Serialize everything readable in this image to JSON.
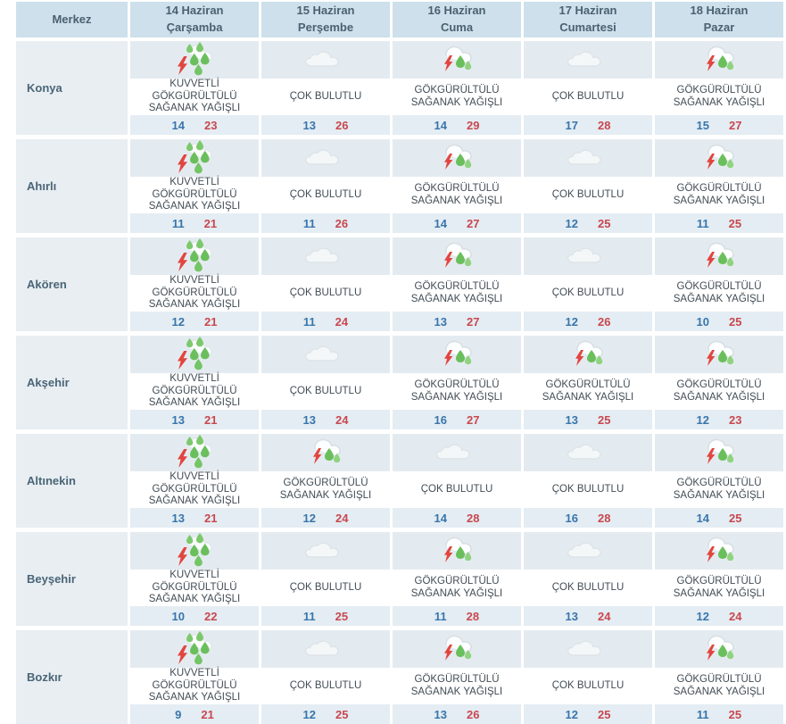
{
  "table": {
    "columns": [
      {
        "label": "Merkez"
      },
      {
        "date": "14 Haziran",
        "day": "Çarşamba"
      },
      {
        "date": "15 Haziran",
        "day": "Perşembe"
      },
      {
        "date": "16 Haziran",
        "day": "Cuma"
      },
      {
        "date": "17 Haziran",
        "day": "Cumartesi"
      },
      {
        "date": "18 Haziran",
        "day": "Pazar"
      }
    ],
    "rows": [
      {
        "city": "Konya",
        "days": [
          {
            "icon": "heavy-storm-rain-icon",
            "condition": "KUVVETLİ GÖKGÜRÜLTÜLÜ SAĞANAK YAĞIŞLI",
            "min": "14",
            "max": "23"
          },
          {
            "icon": "cloudy-icon",
            "condition": "ÇOK BULUTLU",
            "min": "13",
            "max": "26"
          },
          {
            "icon": "storm-rain-icon",
            "condition": "GÖKGÜRÜLTÜLÜ SAĞANAK YAĞIŞLI",
            "min": "14",
            "max": "29"
          },
          {
            "icon": "cloudy-icon",
            "condition": "ÇOK BULUTLU",
            "min": "17",
            "max": "28"
          },
          {
            "icon": "storm-rain-icon",
            "condition": "GÖKGÜRÜLTÜLÜ SAĞANAK YAĞIŞLI",
            "min": "15",
            "max": "27"
          }
        ]
      },
      {
        "city": "Ahırlı",
        "days": [
          {
            "icon": "heavy-storm-rain-icon",
            "condition": "KUVVETLİ GÖKGÜRÜLTÜLÜ SAĞANAK YAĞIŞLI",
            "min": "11",
            "max": "21"
          },
          {
            "icon": "cloudy-icon",
            "condition": "ÇOK BULUTLU",
            "min": "11",
            "max": "26"
          },
          {
            "icon": "storm-rain-icon",
            "condition": "GÖKGÜRÜLTÜLÜ SAĞANAK YAĞIŞLI",
            "min": "14",
            "max": "27"
          },
          {
            "icon": "cloudy-icon",
            "condition": "ÇOK BULUTLU",
            "min": "12",
            "max": "25"
          },
          {
            "icon": "storm-rain-icon",
            "condition": "GÖKGÜRÜLTÜLÜ SAĞANAK YAĞIŞLI",
            "min": "11",
            "max": "25"
          }
        ]
      },
      {
        "city": "Akören",
        "days": [
          {
            "icon": "heavy-storm-rain-icon",
            "condition": "KUVVETLİ GÖKGÜRÜLTÜLÜ SAĞANAK YAĞIŞLI",
            "min": "12",
            "max": "21"
          },
          {
            "icon": "cloudy-icon",
            "condition": "ÇOK BULUTLU",
            "min": "11",
            "max": "24"
          },
          {
            "icon": "storm-rain-icon",
            "condition": "GÖKGÜRÜLTÜLÜ SAĞANAK YAĞIŞLI",
            "min": "13",
            "max": "27"
          },
          {
            "icon": "cloudy-icon",
            "condition": "ÇOK BULUTLU",
            "min": "12",
            "max": "26"
          },
          {
            "icon": "storm-rain-icon",
            "condition": "GÖKGÜRÜLTÜLÜ SAĞANAK YAĞIŞLI",
            "min": "10",
            "max": "25"
          }
        ]
      },
      {
        "city": "Akşehir",
        "days": [
          {
            "icon": "heavy-storm-rain-icon",
            "condition": "KUVVETLİ GÖKGÜRÜLTÜLÜ SAĞANAK YAĞIŞLI",
            "min": "13",
            "max": "21"
          },
          {
            "icon": "cloudy-icon",
            "condition": "ÇOK BULUTLU",
            "min": "13",
            "max": "24"
          },
          {
            "icon": "storm-rain-icon",
            "condition": "GÖKGÜRÜLTÜLÜ SAĞANAK YAĞIŞLI",
            "min": "16",
            "max": "27"
          },
          {
            "icon": "storm-rain-icon",
            "condition": "GÖKGÜRÜLTÜLÜ SAĞANAK YAĞIŞLI",
            "min": "13",
            "max": "25"
          },
          {
            "icon": "storm-rain-icon",
            "condition": "GÖKGÜRÜLTÜLÜ SAĞANAK YAĞIŞLI",
            "min": "12",
            "max": "23"
          }
        ]
      },
      {
        "city": "Altınekin",
        "days": [
          {
            "icon": "heavy-storm-rain-icon",
            "condition": "KUVVETLİ GÖKGÜRÜLTÜLÜ SAĞANAK YAĞIŞLI",
            "min": "13",
            "max": "21"
          },
          {
            "icon": "storm-rain-icon",
            "condition": "GÖKGÜRÜLTÜLÜ SAĞANAK YAĞIŞLI",
            "min": "12",
            "max": "24"
          },
          {
            "icon": "cloudy-icon",
            "condition": "ÇOK BULUTLU",
            "min": "14",
            "max": "28"
          },
          {
            "icon": "cloudy-icon",
            "condition": "ÇOK BULUTLU",
            "min": "16",
            "max": "28"
          },
          {
            "icon": "storm-rain-icon",
            "condition": "GÖKGÜRÜLTÜLÜ SAĞANAK YAĞIŞLI",
            "min": "14",
            "max": "25"
          }
        ]
      },
      {
        "city": "Beyşehir",
        "days": [
          {
            "icon": "heavy-storm-rain-icon",
            "condition": "KUVVETLİ GÖKGÜRÜLTÜLÜ SAĞANAK YAĞIŞLI",
            "min": "10",
            "max": "22"
          },
          {
            "icon": "cloudy-icon",
            "condition": "ÇOK BULUTLU",
            "min": "11",
            "max": "25"
          },
          {
            "icon": "storm-rain-icon",
            "condition": "GÖKGÜRÜLTÜLÜ SAĞANAK YAĞIŞLI",
            "min": "11",
            "max": "28"
          },
          {
            "icon": "cloudy-icon",
            "condition": "ÇOK BULUTLU",
            "min": "13",
            "max": "24"
          },
          {
            "icon": "storm-rain-icon",
            "condition": "GÖKGÜRÜLTÜLÜ SAĞANAK YAĞIŞLI",
            "min": "12",
            "max": "24"
          }
        ]
      },
      {
        "city": "Bozkır",
        "days": [
          {
            "icon": "heavy-storm-rain-icon",
            "condition": "KUVVETLİ GÖKGÜRÜLTÜLÜ SAĞANAK YAĞIŞLI",
            "min": "9",
            "max": "21"
          },
          {
            "icon": "cloudy-icon",
            "condition": "ÇOK BULUTLU",
            "min": "12",
            "max": "25"
          },
          {
            "icon": "storm-rain-icon",
            "condition": "GÖKGÜRÜLTÜLÜ SAĞANAK YAĞIŞLI",
            "min": "13",
            "max": "26"
          },
          {
            "icon": "cloudy-icon",
            "condition": "ÇOK BULUTLU",
            "min": "12",
            "max": "25"
          },
          {
            "icon": "storm-rain-icon",
            "condition": "GÖKGÜRÜLTÜLÜ SAĞANAK YAĞIŞLI",
            "min": "11",
            "max": "25"
          }
        ]
      }
    ]
  },
  "colors": {
    "header_bg": "#cde0eb",
    "row_label_bg": "#e8eef2",
    "icon_area_bg": "#e4ebf0",
    "temp_area_bg": "#e4edf3",
    "min_temp": "#3875ac",
    "max_temp": "#c9474f",
    "header_text": "#4b6170",
    "condition_text": "#414c54",
    "rain_drop_green": "#6abf5c",
    "lightning_red": "#e2453e",
    "cloud_outline_gray": "#d7dfe4"
  }
}
